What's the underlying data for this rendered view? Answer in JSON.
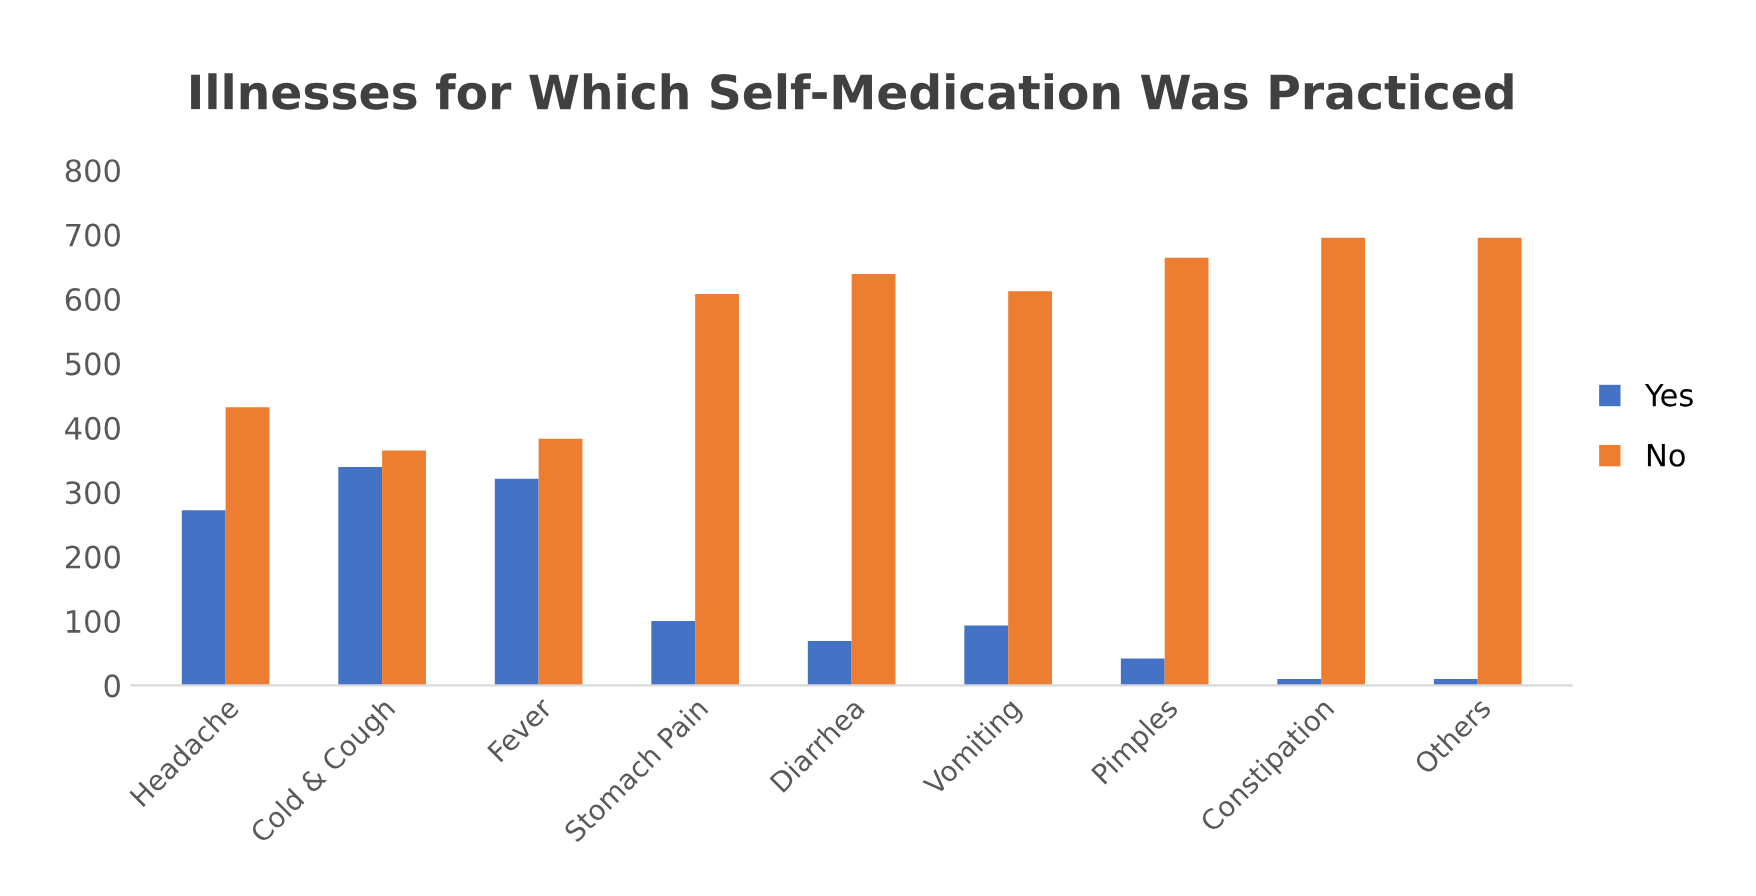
{
  "chart_data": {
    "type": "bar",
    "title": "Illnesses for Which Self-Medication Was Practiced",
    "categories": [
      "Headache",
      "Cold & Cough",
      "Fever",
      "Stomach Pain",
      "Diarrhea",
      "Vomiting",
      "Pimples",
      "Constipation",
      "Others"
    ],
    "series": [
      {
        "name": "Yes",
        "color": "#4472c4",
        "values": [
          272,
          339,
          321,
          100,
          69,
          93,
          42,
          10,
          10
        ]
      },
      {
        "name": "No",
        "color": "#ed7d31",
        "values": [
          432,
          365,
          383,
          608,
          639,
          612,
          664,
          695,
          695
        ]
      }
    ],
    "ylim": [
      0,
      800
    ],
    "yticks": [
      0,
      100,
      200,
      300,
      400,
      500,
      600,
      700,
      800
    ],
    "grid": false,
    "legend": "right"
  }
}
